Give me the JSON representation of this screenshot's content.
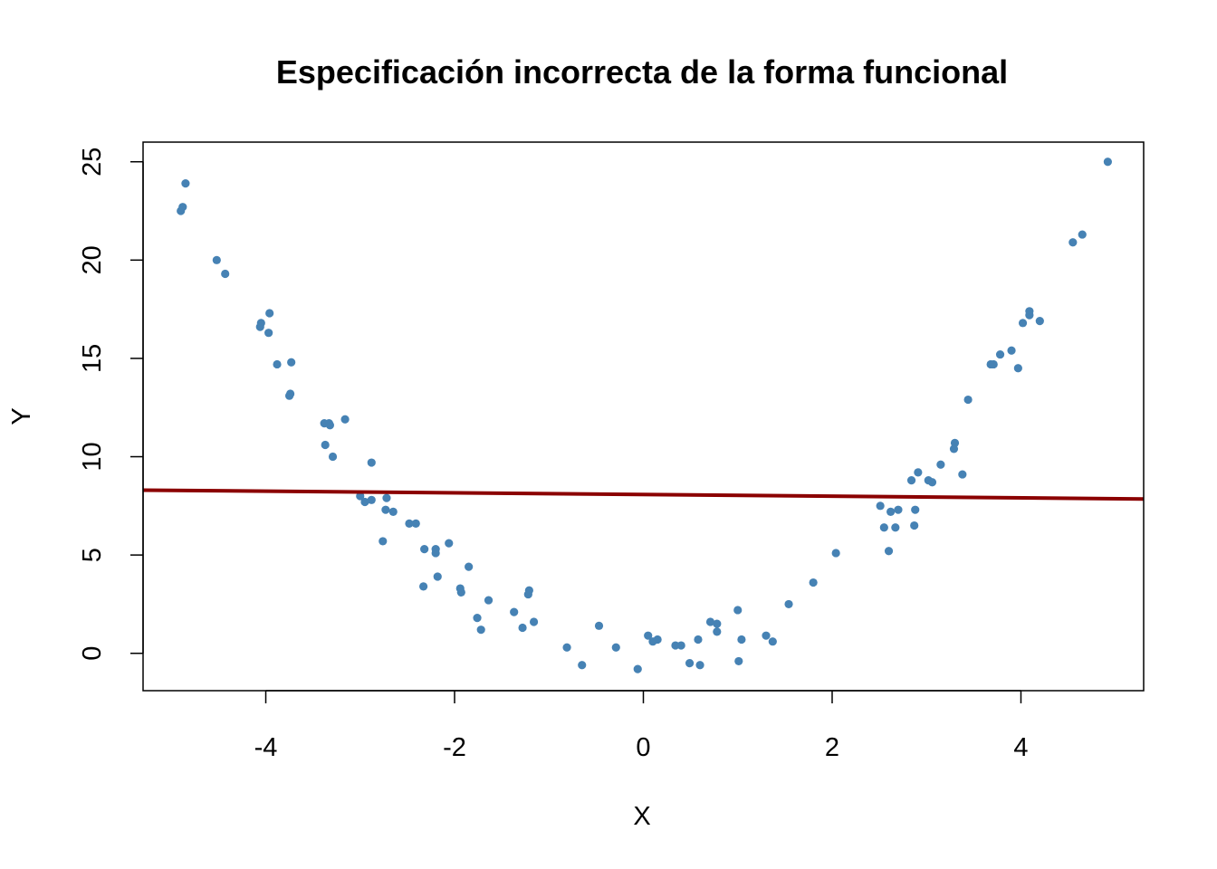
{
  "chart_data": {
    "type": "scatter",
    "title": "Especificación incorrecta de la forma funcional",
    "xlabel": "X",
    "ylabel": "Y",
    "xlim": [
      -5.3,
      5.3
    ],
    "ylim": [
      -1.9,
      26
    ],
    "xticks": [
      -4,
      -2,
      0,
      2,
      4
    ],
    "yticks": [
      0,
      5,
      10,
      15,
      20,
      25
    ],
    "grid": false,
    "point_color": "#4682B4",
    "line_color": "#8B0000",
    "points": [
      [
        -4.9,
        22.5
      ],
      [
        -4.88,
        22.7
      ],
      [
        -4.85,
        23.9
      ],
      [
        -4.52,
        20.0
      ],
      [
        -4.43,
        19.3
      ],
      [
        -4.06,
        16.6
      ],
      [
        -4.05,
        16.8
      ],
      [
        -3.96,
        17.3
      ],
      [
        -3.97,
        16.3
      ],
      [
        -3.88,
        14.7
      ],
      [
        -3.73,
        14.8
      ],
      [
        -3.75,
        13.1
      ],
      [
        -3.74,
        13.2
      ],
      [
        -3.38,
        11.7
      ],
      [
        -3.32,
        11.6
      ],
      [
        -3.33,
        11.7
      ],
      [
        -3.16,
        11.9
      ],
      [
        -3.37,
        10.6
      ],
      [
        -3.29,
        10.0
      ],
      [
        -2.88,
        9.7
      ],
      [
        -3.0,
        8.0
      ],
      [
        -2.95,
        7.7
      ],
      [
        -2.88,
        7.8
      ],
      [
        -2.72,
        7.9
      ],
      [
        -2.73,
        7.3
      ],
      [
        -2.65,
        7.2
      ],
      [
        -2.76,
        5.7
      ],
      [
        -2.48,
        6.6
      ],
      [
        -2.41,
        6.6
      ],
      [
        -2.32,
        5.3
      ],
      [
        -2.2,
        5.3
      ],
      [
        -2.2,
        5.1
      ],
      [
        -2.06,
        5.6
      ],
      [
        -2.33,
        3.4
      ],
      [
        -2.18,
        3.9
      ],
      [
        -1.94,
        3.3
      ],
      [
        -1.93,
        3.1
      ],
      [
        -1.85,
        4.4
      ],
      [
        -1.76,
        1.8
      ],
      [
        -1.72,
        1.2
      ],
      [
        -1.64,
        2.7
      ],
      [
        -1.37,
        2.1
      ],
      [
        -1.28,
        1.3
      ],
      [
        -1.22,
        3.0
      ],
      [
        -1.21,
        3.2
      ],
      [
        -1.16,
        1.6
      ],
      [
        -0.81,
        0.3
      ],
      [
        -0.65,
        -0.6
      ],
      [
        -0.47,
        1.4
      ],
      [
        -0.29,
        0.3
      ],
      [
        -0.06,
        -0.8
      ],
      [
        0.05,
        0.9
      ],
      [
        0.1,
        0.6
      ],
      [
        0.15,
        0.7
      ],
      [
        0.34,
        0.4
      ],
      [
        0.4,
        0.4
      ],
      [
        0.49,
        -0.5
      ],
      [
        0.58,
        0.7
      ],
      [
        0.6,
        -0.6
      ],
      [
        0.71,
        1.6
      ],
      [
        0.78,
        1.5
      ],
      [
        0.78,
        1.1
      ],
      [
        1.0,
        2.2
      ],
      [
        1.01,
        -0.4
      ],
      [
        1.04,
        0.7
      ],
      [
        1.3,
        0.9
      ],
      [
        1.37,
        0.6
      ],
      [
        1.54,
        2.5
      ],
      [
        1.8,
        3.6
      ],
      [
        2.04,
        5.1
      ],
      [
        2.51,
        7.5
      ],
      [
        2.55,
        6.4
      ],
      [
        2.6,
        5.2
      ],
      [
        2.62,
        7.2
      ],
      [
        2.67,
        6.4
      ],
      [
        2.7,
        7.3
      ],
      [
        2.84,
        8.8
      ],
      [
        2.87,
        6.5
      ],
      [
        2.88,
        7.3
      ],
      [
        2.91,
        9.2
      ],
      [
        3.02,
        8.8
      ],
      [
        3.06,
        8.7
      ],
      [
        3.15,
        9.6
      ],
      [
        3.29,
        10.4
      ],
      [
        3.3,
        10.7
      ],
      [
        3.38,
        9.1
      ],
      [
        3.44,
        12.9
      ],
      [
        3.68,
        14.7
      ],
      [
        3.71,
        14.7
      ],
      [
        3.78,
        15.2
      ],
      [
        3.9,
        15.4
      ],
      [
        3.97,
        14.5
      ],
      [
        4.02,
        16.8
      ],
      [
        4.09,
        17.4
      ],
      [
        4.09,
        17.2
      ],
      [
        4.2,
        16.9
      ],
      [
        4.55,
        20.9
      ],
      [
        4.65,
        21.3
      ],
      [
        4.92,
        25.0
      ]
    ],
    "fit_line": {
      "x": [
        -5.3,
        5.3
      ],
      "y": [
        8.3,
        7.85
      ]
    }
  }
}
